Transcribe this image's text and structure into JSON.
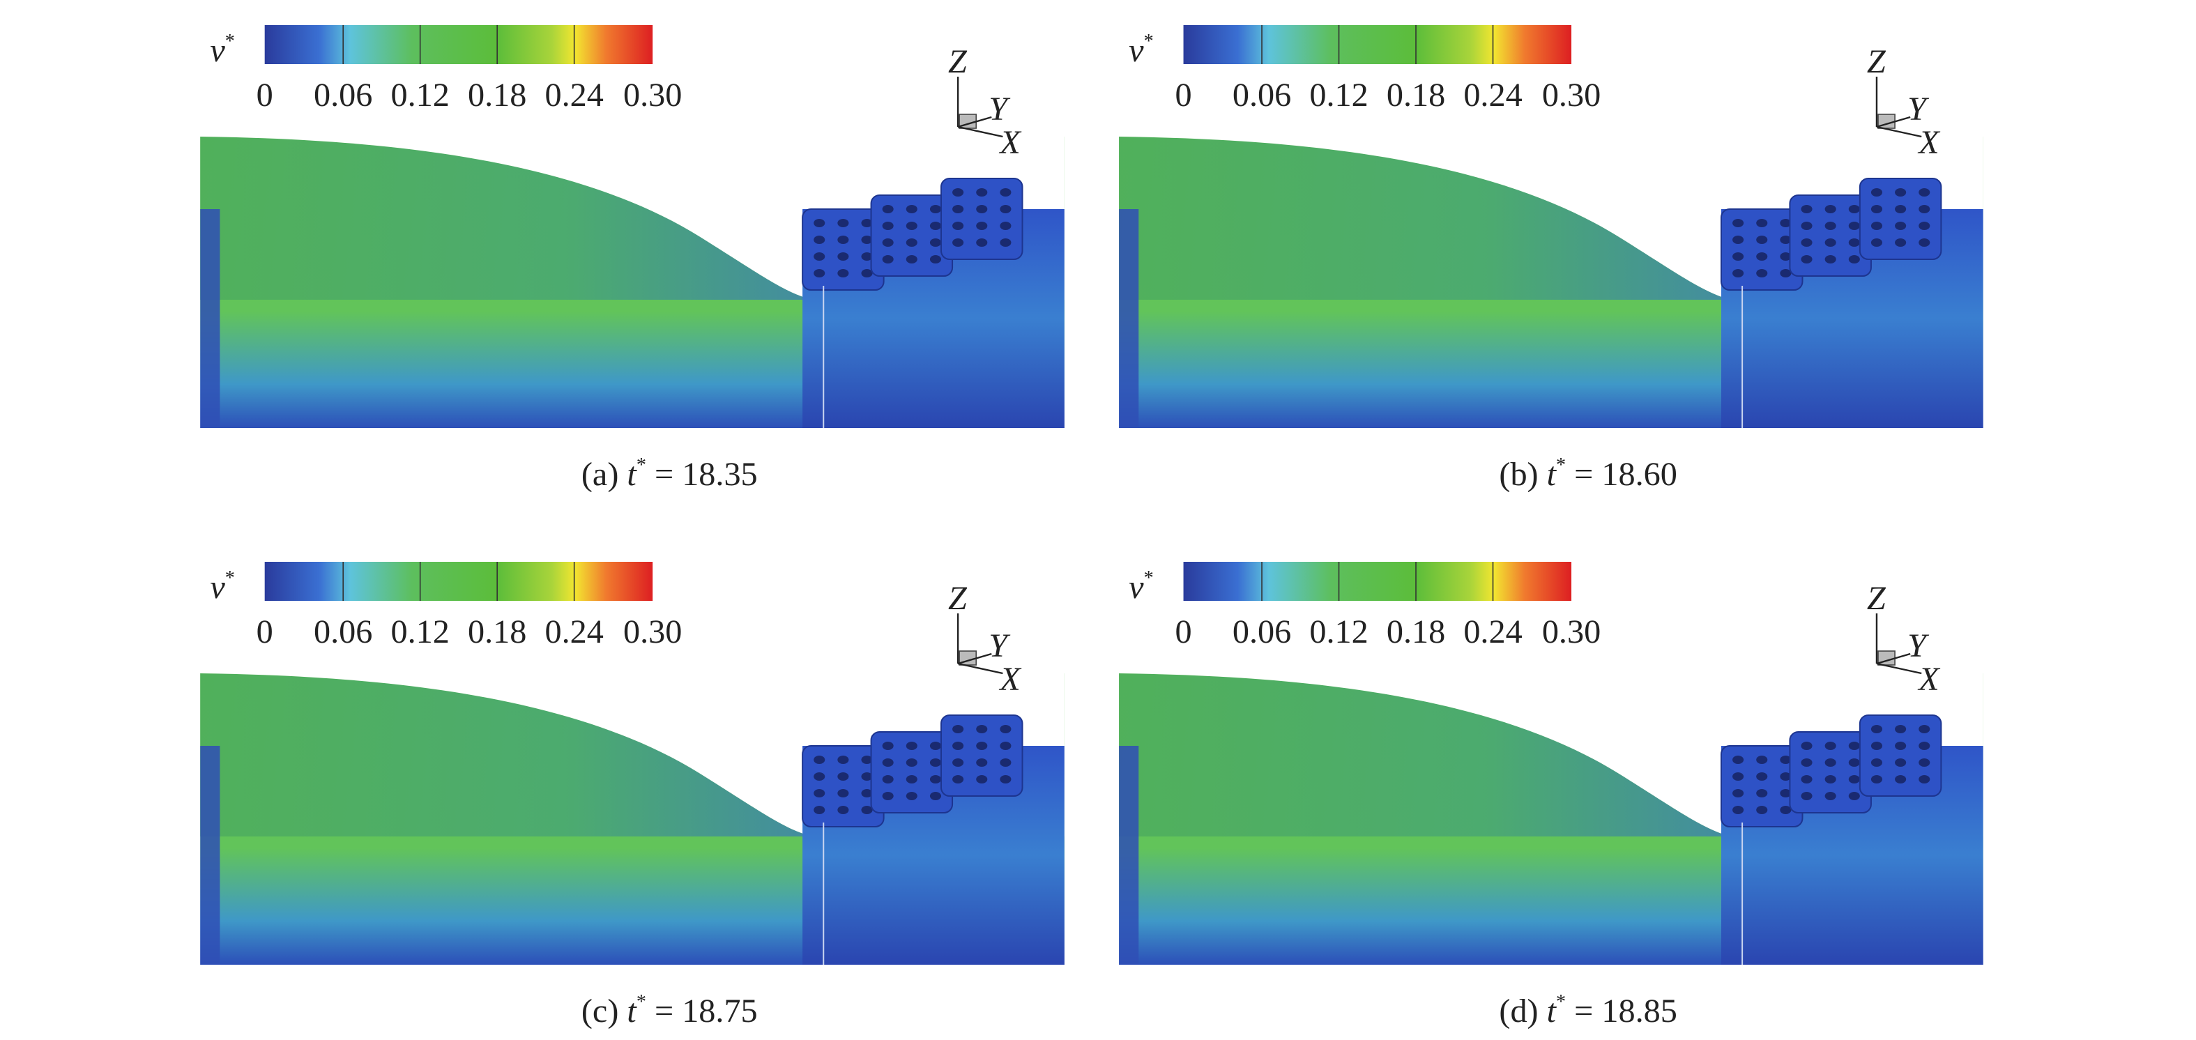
{
  "panels": [
    {
      "colorbar": {
        "symbol": "v",
        "superscript": "*",
        "ticks": [
          "0",
          "0.06",
          "0.12",
          "0.18",
          "0.24",
          "0.30"
        ]
      },
      "axes": {
        "z": "Z",
        "y": "Y",
        "x": "X"
      },
      "caption": {
        "label": "(a)",
        "symbol": "t",
        "superscript": "*",
        "equals": "= 18.35"
      }
    },
    {
      "colorbar": {
        "symbol": "v",
        "superscript": "*",
        "ticks": [
          "0",
          "0.06",
          "0.12",
          "0.18",
          "0.24",
          "0.30"
        ]
      },
      "axes": {
        "z": "Z",
        "y": "Y",
        "x": "X"
      },
      "caption": {
        "label": "(b)",
        "symbol": "t",
        "superscript": "*",
        "equals": "= 18.60"
      }
    },
    {
      "colorbar": {
        "symbol": "v",
        "superscript": "*",
        "ticks": [
          "0",
          "0.06",
          "0.12",
          "0.18",
          "0.24",
          "0.30"
        ]
      },
      "axes": {
        "z": "Z",
        "y": "Y",
        "x": "X"
      },
      "caption": {
        "label": "(c)",
        "symbol": "t",
        "superscript": "*",
        "equals": "= 18.75"
      }
    },
    {
      "colorbar": {
        "symbol": "v",
        "superscript": "*",
        "ticks": [
          "0",
          "0.06",
          "0.12",
          "0.18",
          "0.24",
          "0.30"
        ]
      },
      "axes": {
        "z": "Z",
        "y": "Y",
        "x": "X"
      },
      "caption": {
        "label": "(d)",
        "symbol": "t",
        "superscript": "*",
        "equals": "= 18.85"
      }
    }
  ]
}
